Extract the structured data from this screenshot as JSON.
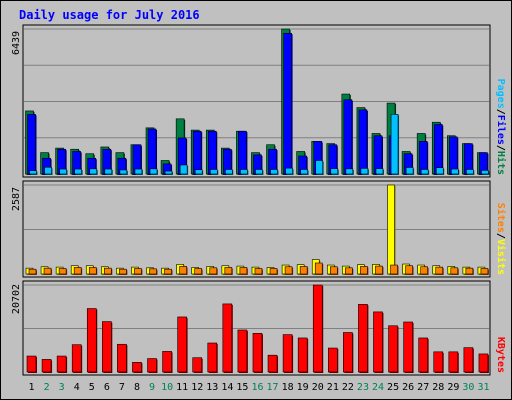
{
  "chart_data": {
    "type": "bar",
    "title": "Daily usage for July 2016",
    "categories": [
      "1",
      "2",
      "3",
      "4",
      "5",
      "6",
      "7",
      "8",
      "9",
      "10",
      "11",
      "12",
      "13",
      "14",
      "15",
      "16",
      "17",
      "18",
      "19",
      "20",
      "21",
      "22",
      "23",
      "24",
      "25",
      "26",
      "27",
      "28",
      "29",
      "30",
      "31"
    ],
    "weekend_days": [
      2,
      3,
      9,
      10,
      16,
      17,
      23,
      24,
      30,
      31
    ],
    "panels": [
      {
        "name": "hits-files-pages",
        "ymax": 6439,
        "ymax_label": "6439",
        "legend": [
          "Pages",
          "/",
          "Files",
          "/",
          "Hits"
        ],
        "series": [
          {
            "name": "Hits",
            "color": "#008040",
            "values": [
              2800,
              950,
              1150,
              1100,
              900,
              1200,
              950,
              1300,
              2050,
              600,
              2450,
              1950,
              1950,
              1150,
              1900,
              950,
              1300,
              6439,
              1000,
              1450,
              1350,
              3550,
              2950,
              1800,
              3150,
              1000,
              1800,
              2300,
              1700,
              1350,
              950
            ]
          },
          {
            "name": "Files",
            "color": "#0000ff",
            "values": [
              2650,
              700,
              1100,
              1000,
              700,
              1100,
              700,
              1300,
              2000,
              450,
              1600,
              1900,
              1900,
              1100,
              1900,
              850,
              1100,
              6250,
              800,
              1450,
              1300,
              3300,
              2850,
              1700,
              1700,
              900,
              1450,
              2200,
              1650,
              1350,
              950
            ]
          },
          {
            "name": "Pages",
            "color": "#00c0ff",
            "values": [
              150,
              300,
              220,
              220,
              230,
              220,
              180,
              220,
              230,
              130,
              400,
              190,
              200,
              200,
              200,
              200,
              200,
              260,
              200,
              600,
              240,
              230,
              250,
              240,
              2650,
              290,
              200,
              280,
              220,
              200,
              160
            ]
          }
        ]
      },
      {
        "name": "visits-sites",
        "ymax": 2587,
        "ymax_label": "2587",
        "legend": [
          "Sites",
          "/",
          "Visits"
        ],
        "series": [
          {
            "name": "Visits",
            "color": "#ffff00",
            "values": [
              170,
              210,
              200,
              240,
              240,
              210,
              170,
              200,
              180,
              170,
              280,
              190,
              220,
              240,
              230,
              200,
              190,
              260,
              270,
              420,
              260,
              230,
              270,
              280,
              2587,
              290,
              260,
              240,
              220,
              200,
              200
            ]
          },
          {
            "name": "Sites",
            "color": "#ff8000",
            "values": [
              140,
              170,
              160,
              190,
              190,
              170,
              140,
              160,
              150,
              140,
              220,
              160,
              180,
              190,
              190,
              160,
              160,
              210,
              220,
              320,
              210,
              180,
              220,
              230,
              260,
              240,
              210,
              200,
              180,
              170,
              160
            ]
          }
        ]
      },
      {
        "name": "kbytes",
        "ymax": 20702,
        "ymax_label": "20702",
        "legend": [
          "KBytes"
        ],
        "series": [
          {
            "name": "KBytes",
            "color": "#ff0000",
            "values": [
              3800,
              3000,
              3800,
              6500,
              15100,
              12000,
              6600,
              2300,
              3200,
              4900,
              13100,
              3400,
              6900,
              16200,
              10000,
              9200,
              4000,
              8900,
              8100,
              20702,
              5700,
              9400,
              16100,
              14300,
              11000,
              11900,
              8100,
              4800,
              4800,
              5800,
              4300
            ]
          }
        ]
      }
    ]
  }
}
